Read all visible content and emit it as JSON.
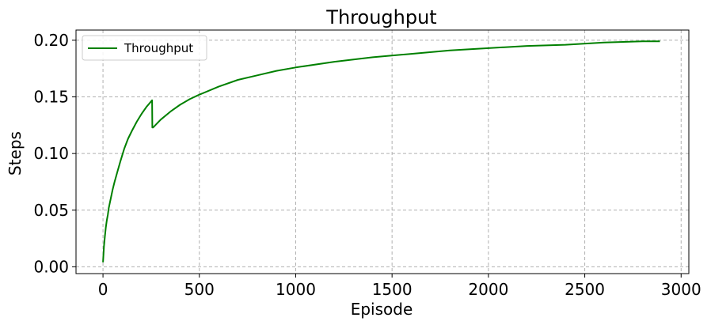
{
  "chart_data": {
    "type": "line",
    "title": "Throughput",
    "xlabel": "Episode",
    "ylabel": "Steps",
    "xlim": [
      -140,
      3040
    ],
    "ylim": [
      -0.006,
      0.209
    ],
    "xticks": [
      0,
      500,
      1000,
      1500,
      2000,
      2500,
      3000
    ],
    "xtick_labels": [
      "0",
      "500",
      "1000",
      "1500",
      "2000",
      "2500",
      "3000"
    ],
    "yticks": [
      0.0,
      0.05,
      0.1,
      0.15,
      0.2
    ],
    "ytick_labels": [
      "0.00",
      "0.05",
      "0.10",
      "0.15",
      "0.20"
    ],
    "grid": true,
    "legend_position": "top-left",
    "series": [
      {
        "name": "Throughput",
        "color": "#008000",
        "x": [
          0,
          5,
          10,
          15,
          20,
          25,
          30,
          40,
          50,
          60,
          75,
          90,
          110,
          130,
          150,
          175,
          200,
          225,
          255,
          256,
          260,
          300,
          350,
          400,
          450,
          500,
          600,
          700,
          800,
          900,
          1000,
          1200,
          1400,
          1600,
          1800,
          2000,
          2200,
          2400,
          2600,
          2800,
          2890
        ],
        "y": [
          0.004,
          0.018,
          0.027,
          0.035,
          0.041,
          0.046,
          0.052,
          0.06,
          0.068,
          0.075,
          0.084,
          0.093,
          0.104,
          0.113,
          0.12,
          0.128,
          0.135,
          0.141,
          0.147,
          0.123,
          0.123,
          0.13,
          0.137,
          0.143,
          0.148,
          0.152,
          0.159,
          0.165,
          0.169,
          0.173,
          0.176,
          0.181,
          0.185,
          0.188,
          0.191,
          0.193,
          0.195,
          0.196,
          0.198,
          0.199,
          0.199
        ]
      }
    ]
  }
}
